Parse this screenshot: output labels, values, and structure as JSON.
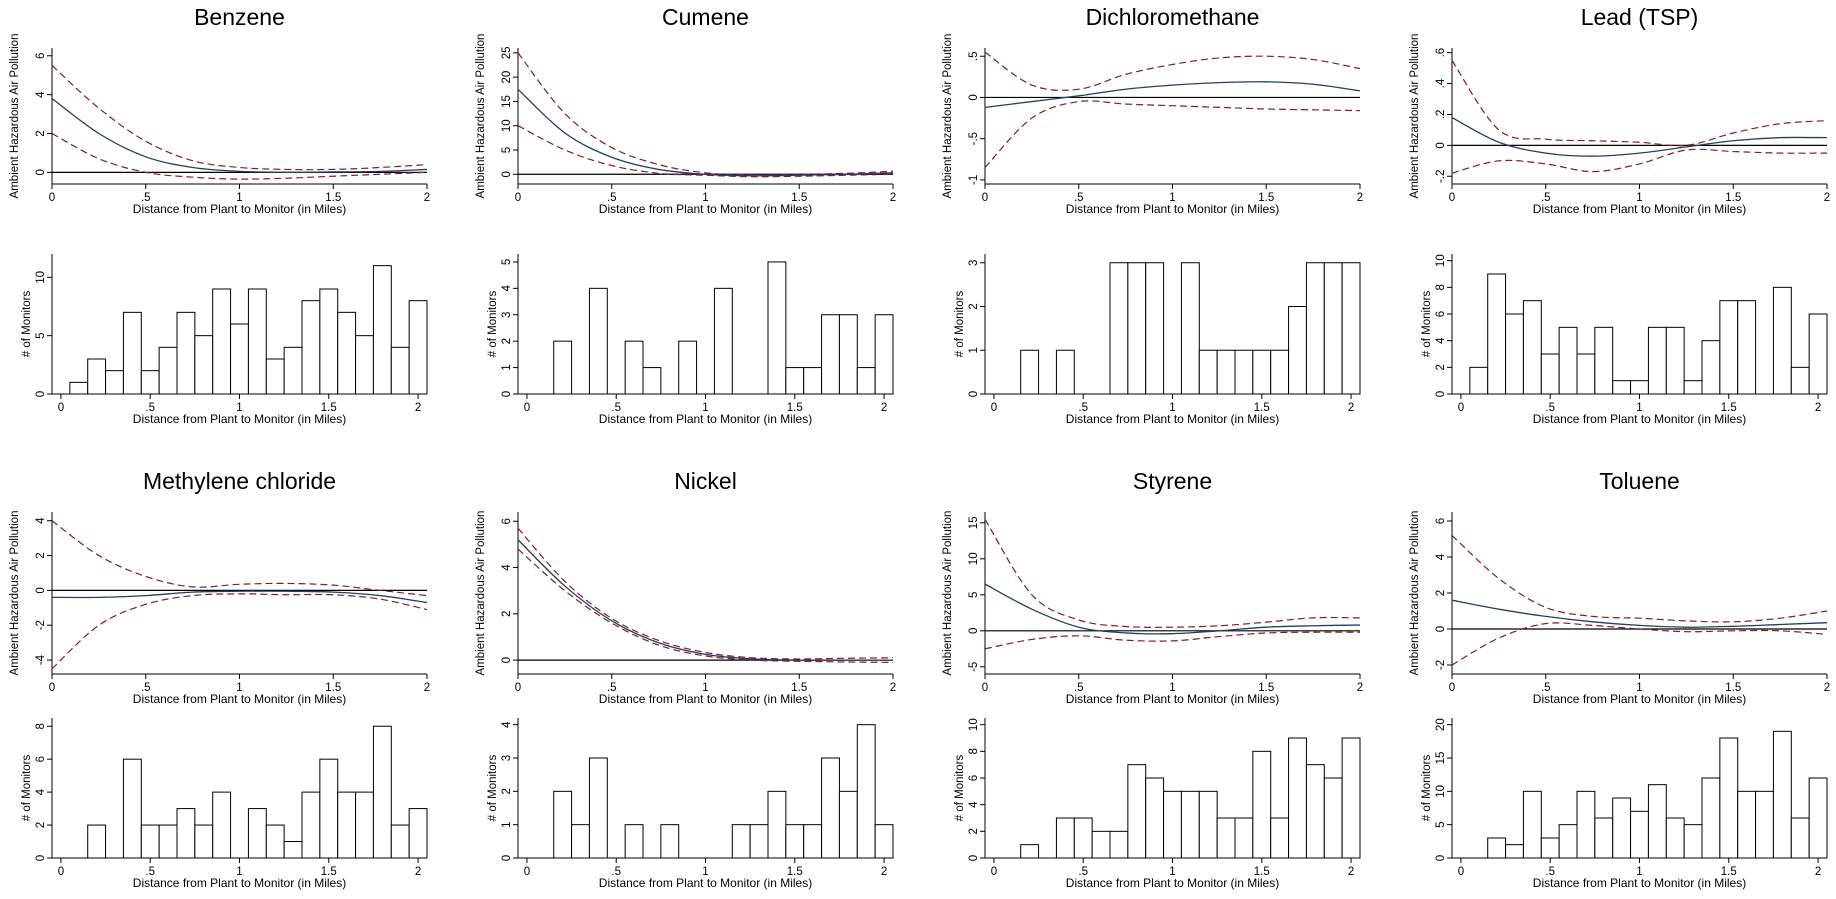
{
  "colors": {
    "estimate": "#1f3f66",
    "ci": "#8a1a24",
    "zero": "#000000",
    "bars": "#000000"
  },
  "chart_data": [
    {
      "title": "Benzene",
      "line": {
        "type": "line",
        "xlabel": "Distance from Plant to Monitor (in Miles)",
        "ylabel": "Ambient Hazardous Air Pollution",
        "xlim": [
          0,
          2
        ],
        "ylim": [
          -0.6,
          6.4
        ],
        "xticks": [
          0,
          0.5,
          1,
          1.5,
          2
        ],
        "xtick_labels": [
          "0",
          ".5",
          "1",
          "1.5",
          "2"
        ],
        "yticks": [
          0,
          2,
          4,
          6
        ],
        "ytick_labels": [
          "0",
          "2",
          "4",
          "6"
        ],
        "x": [
          0,
          0.25,
          0.5,
          0.75,
          1,
          1.25,
          1.5,
          1.75,
          2
        ],
        "estimate": [
          3.8,
          2.0,
          0.8,
          0.25,
          0.05,
          0.0,
          0.02,
          0.05,
          0.15
        ],
        "ci_upper": [
          5.5,
          3.3,
          1.6,
          0.6,
          0.25,
          0.15,
          0.15,
          0.25,
          0.4
        ],
        "ci_lower": [
          2.0,
          0.7,
          0.0,
          -0.25,
          -0.35,
          -0.3,
          -0.2,
          -0.1,
          0.0
        ]
      },
      "hist": {
        "type": "bar",
        "xlabel": "Distance from Plant to Monitor (in Miles)",
        "ylabel": "# of Monitors",
        "xlim": [
          -0.05,
          2.05
        ],
        "ylim": [
          0,
          12
        ],
        "xticks": [
          0,
          0.5,
          1,
          1.5,
          2
        ],
        "xtick_labels": [
          "0",
          ".5",
          "1",
          "1.5",
          "2"
        ],
        "yticks": [
          0,
          5,
          10
        ],
        "ytick_labels": [
          "0",
          "5",
          "10"
        ],
        "bin_width": 0.1,
        "bin_start": 0.05,
        "values": [
          1,
          3,
          2,
          7,
          2,
          4,
          7,
          5,
          9,
          6,
          9,
          3,
          4,
          8,
          9,
          7,
          5,
          11,
          4,
          8
        ]
      }
    },
    {
      "title": "Cumene",
      "line": {
        "type": "line",
        "xlabel": "Distance from Plant to Monitor (in Miles)",
        "ylabel": "Ambient Hazardous Air Pollution",
        "xlim": [
          0,
          2
        ],
        "ylim": [
          -2,
          26
        ],
        "xticks": [
          0,
          0.5,
          1,
          1.5,
          2
        ],
        "xtick_labels": [
          "0",
          ".5",
          "1",
          "1.5",
          "2"
        ],
        "yticks": [
          0,
          5,
          10,
          15,
          20,
          25
        ],
        "ytick_labels": [
          "0",
          "5",
          "10",
          "15",
          "20",
          "25"
        ],
        "x": [
          0,
          0.25,
          0.5,
          0.75,
          1,
          1.25,
          1.5,
          1.75,
          2
        ],
        "estimate": [
          17.5,
          8.5,
          3.5,
          1.0,
          0.0,
          -0.3,
          -0.2,
          0.0,
          0.3
        ],
        "ci_upper": [
          25.0,
          12.5,
          5.5,
          2.0,
          0.3,
          -0.1,
          0.0,
          0.2,
          0.6
        ],
        "ci_lower": [
          10.0,
          5.0,
          1.8,
          0.2,
          -0.2,
          -0.5,
          -0.4,
          -0.2,
          0.0
        ]
      },
      "hist": {
        "type": "bar",
        "xlabel": "Distance from Plant to Monitor (in Miles)",
        "ylabel": "# of Monitors",
        "xlim": [
          -0.05,
          2.05
        ],
        "ylim": [
          0,
          5.3
        ],
        "xticks": [
          0,
          0.5,
          1,
          1.5,
          2
        ],
        "xtick_labels": [
          "0",
          ".5",
          "1",
          "1.5",
          "2"
        ],
        "yticks": [
          0,
          1,
          2,
          3,
          4,
          5
        ],
        "ytick_labels": [
          "0",
          "1",
          "2",
          "3",
          "4",
          "5"
        ],
        "bin_width": 0.1,
        "bin_start": 0.05,
        "values": [
          0,
          2,
          0,
          4,
          0,
          2,
          1,
          0,
          2,
          0,
          4,
          0,
          0,
          5,
          1,
          1,
          3,
          3,
          1,
          3
        ]
      }
    },
    {
      "title": "Dichloromethane",
      "line": {
        "type": "line",
        "xlabel": "Distance from Plant to Monitor (in Miles)",
        "ylabel": "Ambient Hazardous Air Pollution",
        "xlim": [
          0,
          2
        ],
        "ylim": [
          -1.05,
          0.6
        ],
        "xticks": [
          0,
          0.5,
          1,
          1.5,
          2
        ],
        "xtick_labels": [
          "0",
          ".5",
          "1",
          "1.5",
          "2"
        ],
        "yticks": [
          -1,
          -0.5,
          0,
          0.5
        ],
        "ytick_labels": [
          "-1",
          "-.5",
          "0",
          ".5"
        ],
        "x": [
          0,
          0.25,
          0.5,
          0.75,
          1,
          1.25,
          1.5,
          1.75,
          2
        ],
        "estimate": [
          -0.12,
          -0.05,
          0.02,
          0.1,
          0.15,
          0.18,
          0.19,
          0.16,
          0.08
        ],
        "ci_upper": [
          0.55,
          0.15,
          0.1,
          0.28,
          0.4,
          0.48,
          0.5,
          0.46,
          0.35
        ],
        "ci_lower": [
          -0.85,
          -0.25,
          -0.05,
          -0.08,
          -0.1,
          -0.12,
          -0.14,
          -0.15,
          -0.16
        ]
      },
      "hist": {
        "type": "bar",
        "xlabel": "Distance from Plant to Monitor (in Miles)",
        "ylabel": "# of Monitors",
        "xlim": [
          -0.05,
          2.05
        ],
        "ylim": [
          0,
          3.2
        ],
        "xticks": [
          0,
          0.5,
          1,
          1.5,
          2
        ],
        "xtick_labels": [
          "0",
          ".5",
          "1",
          "1.5",
          "2"
        ],
        "yticks": [
          0,
          1,
          2,
          3
        ],
        "ytick_labels": [
          "0",
          "1",
          "2",
          "3"
        ],
        "bin_width": 0.1,
        "bin_start": 0.05,
        "values": [
          0,
          1,
          0,
          1,
          0,
          0,
          3,
          3,
          3,
          0,
          3,
          1,
          1,
          1,
          1,
          1,
          2,
          3,
          3,
          3
        ]
      }
    },
    {
      "title": "Lead (TSP)",
      "line": {
        "type": "line",
        "xlabel": "Distance from Plant to Monitor (in Miles)",
        "ylabel": "Ambient Hazardous Air Pollution",
        "xlim": [
          0,
          2
        ],
        "ylim": [
          -0.25,
          0.63
        ],
        "xticks": [
          0,
          0.5,
          1,
          1.5,
          2
        ],
        "xtick_labels": [
          "0",
          ".5",
          "1",
          "1.5",
          "2"
        ],
        "yticks": [
          -0.2,
          0,
          0.2,
          0.4,
          0.6
        ],
        "ytick_labels": [
          "-.2",
          "0",
          ".2",
          ".4",
          ".6"
        ],
        "x": [
          0,
          0.25,
          0.5,
          0.75,
          1,
          1.25,
          1.5,
          1.75,
          2
        ],
        "estimate": [
          0.18,
          0.02,
          -0.05,
          -0.07,
          -0.05,
          -0.01,
          0.03,
          0.05,
          0.05
        ],
        "ci_upper": [
          0.55,
          0.1,
          0.04,
          0.03,
          0.02,
          0.0,
          0.08,
          0.14,
          0.16
        ],
        "ci_lower": [
          -0.18,
          -0.1,
          -0.12,
          -0.17,
          -0.12,
          -0.03,
          -0.04,
          -0.05,
          -0.05
        ]
      },
      "hist": {
        "type": "bar",
        "xlabel": "Distance from Plant to Monitor (in Miles)",
        "ylabel": "# of Monitors",
        "xlim": [
          -0.05,
          2.05
        ],
        "ylim": [
          0,
          10.5
        ],
        "xticks": [
          0,
          0.5,
          1,
          1.5,
          2
        ],
        "xtick_labels": [
          "0",
          ".5",
          "1",
          "1.5",
          "2"
        ],
        "yticks": [
          0,
          2,
          4,
          6,
          8,
          10
        ],
        "ytick_labels": [
          "0",
          "2",
          "4",
          "6",
          "8",
          "10"
        ],
        "bin_width": 0.1,
        "bin_start": 0.05,
        "values": [
          2,
          9,
          6,
          7,
          3,
          5,
          3,
          5,
          1,
          1,
          5,
          5,
          1,
          4,
          7,
          7,
          0,
          8,
          2,
          6
        ]
      }
    },
    {
      "title": "Methylene chloride",
      "line": {
        "type": "line",
        "xlabel": "Distance from Plant to Monitor (in Miles)",
        "ylabel": "Ambient Hazardous Air Pollution",
        "xlim": [
          0,
          2
        ],
        "ylim": [
          -4.8,
          4.5
        ],
        "xticks": [
          0,
          0.5,
          1,
          1.5,
          2
        ],
        "xtick_labels": [
          "0",
          ".5",
          "1",
          "1.5",
          "2"
        ],
        "yticks": [
          -4,
          -2,
          0,
          2,
          4
        ],
        "ytick_labels": [
          "-4",
          "-2",
          "0",
          "2",
          "4"
        ],
        "x": [
          0,
          0.25,
          0.5,
          0.75,
          1,
          1.25,
          1.5,
          1.75,
          2
        ],
        "estimate": [
          -0.4,
          -0.4,
          -0.3,
          -0.1,
          -0.05,
          -0.05,
          -0.1,
          -0.3,
          -0.7
        ],
        "ci_upper": [
          4.0,
          2.0,
          0.8,
          0.2,
          0.35,
          0.4,
          0.3,
          0.0,
          -0.3
        ],
        "ci_lower": [
          -4.5,
          -2.0,
          -0.8,
          -0.3,
          -0.2,
          -0.25,
          -0.25,
          -0.5,
          -1.1
        ]
      },
      "hist": {
        "type": "bar",
        "xlabel": "Distance from Plant to Monitor (in Miles)",
        "ylabel": "# of Monitors",
        "xlim": [
          -0.05,
          2.05
        ],
        "ylim": [
          0,
          8.5
        ],
        "xticks": [
          0,
          0.5,
          1,
          1.5,
          2
        ],
        "xtick_labels": [
          "0",
          ".5",
          "1",
          "1.5",
          "2"
        ],
        "yticks": [
          0,
          2,
          4,
          6,
          8
        ],
        "ytick_labels": [
          "0",
          "2",
          "4",
          "6",
          "8"
        ],
        "bin_width": 0.1,
        "bin_start": 0.05,
        "values": [
          0,
          2,
          0,
          6,
          2,
          2,
          3,
          2,
          4,
          0,
          3,
          2,
          1,
          4,
          6,
          4,
          4,
          8,
          2,
          3
        ]
      }
    },
    {
      "title": "Nickel",
      "line": {
        "type": "line",
        "xlabel": "Distance from Plant to Monitor (in Miles)",
        "ylabel": "Ambient Hazardous Air Pollution",
        "xlim": [
          0,
          2
        ],
        "ylim": [
          -0.6,
          6.4
        ],
        "xticks": [
          0,
          0.5,
          1,
          1.5,
          2
        ],
        "xtick_labels": [
          "0",
          ".5",
          "1",
          "1.5",
          "2"
        ],
        "yticks": [
          0,
          2,
          4,
          6
        ],
        "ytick_labels": [
          "0",
          "2",
          "4",
          "6"
        ],
        "x": [
          0,
          0.25,
          0.5,
          0.75,
          1,
          1.25,
          1.5,
          1.75,
          2
        ],
        "estimate": [
          5.2,
          3.2,
          1.7,
          0.75,
          0.25,
          0.05,
          0.0,
          0.0,
          0.0
        ],
        "ci_upper": [
          5.7,
          3.4,
          1.8,
          0.85,
          0.33,
          0.1,
          0.05,
          0.08,
          0.1
        ],
        "ci_lower": [
          4.8,
          3.0,
          1.6,
          0.65,
          0.18,
          0.0,
          -0.05,
          -0.08,
          -0.1
        ]
      },
      "hist": {
        "type": "bar",
        "xlabel": "Distance from Plant to Monitor (in Miles)",
        "ylabel": "# of Monitors",
        "xlim": [
          -0.05,
          2.05
        ],
        "ylim": [
          0,
          4.2
        ],
        "xticks": [
          0,
          0.5,
          1,
          1.5,
          2
        ],
        "xtick_labels": [
          "0",
          ".5",
          "1",
          "1.5",
          "2"
        ],
        "yticks": [
          0,
          1,
          2,
          3,
          4
        ],
        "ytick_labels": [
          "0",
          "1",
          "2",
          "3",
          "4"
        ],
        "bin_width": 0.1,
        "bin_start": 0.05,
        "values": [
          0,
          2,
          1,
          3,
          0,
          1,
          0,
          1,
          0,
          0,
          0,
          1,
          1,
          2,
          1,
          1,
          3,
          2,
          4,
          1
        ]
      }
    },
    {
      "title": "Styrene",
      "line": {
        "type": "line",
        "xlabel": "Distance from Plant to Monitor (in Miles)",
        "ylabel": "Ambient Hazardous Air Pollution",
        "xlim": [
          0,
          2
        ],
        "ylim": [
          -6,
          16.5
        ],
        "xticks": [
          0,
          0.5,
          1,
          1.5,
          2
        ],
        "xtick_labels": [
          "0",
          ".5",
          "1",
          "1.5",
          "2"
        ],
        "yticks": [
          -5,
          0,
          5,
          10,
          15
        ],
        "ytick_labels": [
          "-5",
          "0",
          "5",
          "10",
          "15"
        ],
        "x": [
          0,
          0.25,
          0.5,
          0.75,
          1,
          1.25,
          1.5,
          1.75,
          2
        ],
        "estimate": [
          6.5,
          3.0,
          0.5,
          -0.3,
          -0.4,
          0.0,
          0.5,
          0.7,
          0.8
        ],
        "ci_upper": [
          15.5,
          5.0,
          1.5,
          0.6,
          0.5,
          0.7,
          1.2,
          1.8,
          1.8
        ],
        "ci_lower": [
          -2.5,
          -1.2,
          -0.7,
          -1.3,
          -1.4,
          -0.8,
          -0.3,
          -0.2,
          -0.2
        ]
      },
      "hist": {
        "type": "bar",
        "xlabel": "Distance from Plant to Monitor (in Miles)",
        "ylabel": "# of Monitors",
        "xlim": [
          -0.05,
          2.05
        ],
        "ylim": [
          0,
          10.5
        ],
        "xticks": [
          0,
          0.5,
          1,
          1.5,
          2
        ],
        "xtick_labels": [
          "0",
          ".5",
          "1",
          "1.5",
          "2"
        ],
        "yticks": [
          0,
          2,
          4,
          6,
          8,
          10
        ],
        "ytick_labels": [
          "0",
          "2",
          "4",
          "6",
          "8",
          "10"
        ],
        "bin_width": 0.1,
        "bin_start": 0.05,
        "values": [
          0,
          1,
          0,
          3,
          3,
          2,
          2,
          7,
          6,
          5,
          5,
          5,
          3,
          3,
          8,
          3,
          9,
          7,
          6,
          9
        ]
      }
    },
    {
      "title": "Toluene",
      "line": {
        "type": "line",
        "xlabel": "Distance from Plant to Monitor (in Miles)",
        "ylabel": "Ambient Hazardous Air Pollution",
        "xlim": [
          0,
          2
        ],
        "ylim": [
          -2.5,
          6.5
        ],
        "xticks": [
          0,
          0.5,
          1,
          1.5,
          2
        ],
        "xtick_labels": [
          "0",
          ".5",
          "1",
          "1.5",
          "2"
        ],
        "yticks": [
          -2,
          0,
          2,
          4,
          6
        ],
        "ytick_labels": [
          "-2",
          "0",
          "2",
          "4",
          "6"
        ],
        "x": [
          0,
          0.25,
          0.5,
          0.75,
          1,
          1.25,
          1.5,
          1.75,
          2
        ],
        "estimate": [
          1.6,
          1.1,
          0.7,
          0.4,
          0.2,
          0.1,
          0.15,
          0.25,
          0.35
        ],
        "ci_upper": [
          5.2,
          2.8,
          1.2,
          0.7,
          0.6,
          0.45,
          0.4,
          0.6,
          1.0
        ],
        "ci_lower": [
          -2.0,
          -0.5,
          0.3,
          0.2,
          0.0,
          -0.15,
          -0.1,
          -0.1,
          -0.3
        ]
      },
      "hist": {
        "type": "bar",
        "xlabel": "Distance from Plant to Monitor (in Miles)",
        "ylabel": "# of Monitors",
        "xlim": [
          -0.05,
          2.05
        ],
        "ylim": [
          0,
          21
        ],
        "xticks": [
          0,
          0.5,
          1,
          1.5,
          2
        ],
        "xtick_labels": [
          "0",
          ".5",
          "1",
          "1.5",
          "2"
        ],
        "yticks": [
          0,
          5,
          10,
          15,
          20
        ],
        "ytick_labels": [
          "0",
          "5",
          "10",
          "15",
          "20"
        ],
        "bin_width": 0.1,
        "bin_start": 0.05,
        "values": [
          0,
          3,
          2,
          10,
          3,
          5,
          10,
          6,
          9,
          7,
          11,
          6,
          5,
          12,
          18,
          10,
          10,
          19,
          6,
          12
        ]
      }
    }
  ]
}
